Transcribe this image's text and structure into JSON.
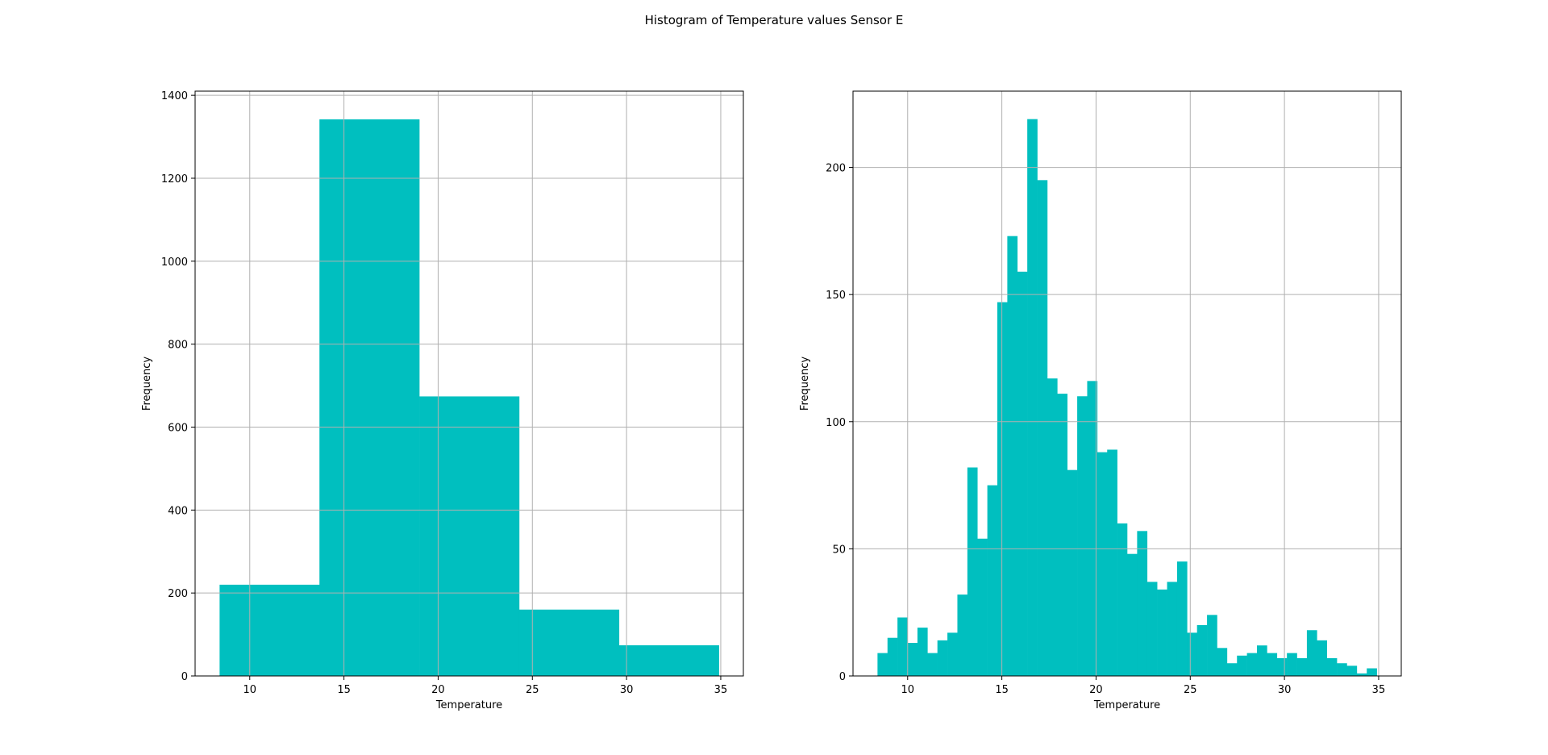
{
  "figure": {
    "title": "Histogram of Temperature values Sensor E"
  },
  "chart_data": [
    {
      "type": "bar",
      "histogram": true,
      "title": "",
      "xlabel": "Temperature",
      "ylabel": "Frequency",
      "color": "#00bfbf",
      "grid": true,
      "xlim": [
        7.1,
        36.2
      ],
      "ylim": [
        0,
        1410
      ],
      "xticks": [
        10,
        15,
        20,
        25,
        30,
        35
      ],
      "yticks": [
        0,
        200,
        400,
        600,
        800,
        1000,
        1200,
        1400
      ],
      "bin_edges": [
        8.4,
        13.7,
        19.0,
        24.3,
        29.6,
        34.9
      ],
      "values": [
        220,
        1342,
        674,
        160,
        74
      ]
    },
    {
      "type": "bar",
      "histogram": true,
      "title": "",
      "xlabel": "Temperature",
      "ylabel": "Frequency",
      "color": "#00bfbf",
      "grid": true,
      "xlim": [
        7.1,
        36.2
      ],
      "ylim": [
        0,
        230
      ],
      "xticks": [
        10,
        15,
        20,
        25,
        30,
        35
      ],
      "yticks": [
        0,
        50,
        100,
        150,
        200
      ],
      "bin_start": 8.4,
      "bin_width": 0.53,
      "values": [
        9,
        15,
        23,
        13,
        19,
        9,
        14,
        17,
        32,
        82,
        54,
        75,
        147,
        173,
        159,
        219,
        195,
        117,
        111,
        81,
        110,
        116,
        88,
        89,
        60,
        48,
        57,
        37,
        34,
        37,
        45,
        17,
        20,
        24,
        11,
        5,
        8,
        9,
        12,
        9,
        7,
        9,
        7,
        18,
        14,
        7,
        5,
        4,
        1,
        3
      ]
    }
  ]
}
